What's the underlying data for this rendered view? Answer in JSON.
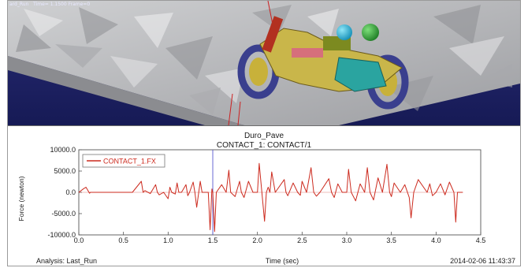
{
  "viewport": {
    "title_bar": "ard_Run   Time= 1.1500 Frame=0",
    "colors": {
      "sky": "#1d2168",
      "road": "#b9babc",
      "road_dark": "#7e8084",
      "tire": "#3a3f8e",
      "frame": "#c6b13a",
      "ball_blue": "#2fb7d8",
      "ball_green": "#2fa83a",
      "engine": "#2aa4a0",
      "marker": "#cc2020"
    }
  },
  "chart_data": {
    "type": "line",
    "title": "Duro_Pave",
    "subtitle": "CONTACT_1: CONTACT/1",
    "xlabel": "Time (sec)",
    "ylabel": "Force (newton)",
    "xlim": [
      0.0,
      4.5
    ],
    "ylim": [
      -10000.0,
      10000.0
    ],
    "xticks": [
      "0.0",
      "0.5",
      "1.0",
      "1.5",
      "2.0",
      "2.5",
      "3.0",
      "3.5",
      "4.0",
      "4.5"
    ],
    "yticks": [
      "10000.0",
      "5000.0",
      "0.0",
      "-5000.0",
      "-10000.0"
    ],
    "xtick_values": [
      0,
      0.5,
      1.0,
      1.5,
      2.0,
      2.5,
      3.0,
      3.5,
      4.0,
      4.5
    ],
    "ytick_values": [
      10000,
      5000,
      0,
      -5000,
      -10000
    ],
    "grid": false,
    "legend_position": "top-left",
    "cursor_x": 1.5,
    "series": [
      {
        "name": "CONTACT_1.FX",
        "color": "#cc2a1e",
        "x": [
          0,
          0.05,
          0.08,
          0.12,
          0.13,
          0.6,
          0.7,
          0.72,
          0.74,
          0.8,
          0.86,
          0.88,
          0.9,
          0.95,
          1.0,
          1.02,
          1.04,
          1.08,
          1.1,
          1.12,
          1.15,
          1.2,
          1.22,
          1.24,
          1.28,
          1.3,
          1.32,
          1.36,
          1.38,
          1.45,
          1.47,
          1.49,
          1.5,
          1.52,
          1.54,
          1.6,
          1.65,
          1.68,
          1.7,
          1.75,
          1.8,
          1.82,
          1.85,
          1.9,
          1.95,
          2.0,
          2.02,
          2.05,
          2.08,
          2.1,
          2.12,
          2.14,
          2.16,
          2.2,
          2.3,
          2.32,
          2.34,
          2.4,
          2.45,
          2.48,
          2.5,
          2.55,
          2.6,
          2.63,
          2.66,
          2.7,
          2.8,
          2.83,
          2.86,
          2.9,
          2.95,
          3.0,
          3.02,
          3.05,
          3.1,
          3.15,
          3.2,
          3.23,
          3.26,
          3.3,
          3.35,
          3.4,
          3.45,
          3.48,
          3.5,
          3.53,
          3.6,
          3.65,
          3.7,
          3.72,
          3.75,
          3.8,
          3.9,
          3.93,
          3.96,
          4.0,
          4.05,
          4.1,
          4.15,
          4.2,
          4.22,
          4.24,
          4.27,
          4.3
        ],
        "y": [
          0,
          800,
          1200,
          -200,
          0,
          0,
          2600,
          0,
          400,
          -300,
          1800,
          0,
          -600,
          0,
          -1500,
          1200,
          0,
          -400,
          2200,
          0,
          0,
          1800,
          -800,
          0,
          2400,
          0,
          -3500,
          2600,
          0,
          0,
          -8800,
          800,
          0,
          -9200,
          0,
          1800,
          0,
          5200,
          0,
          -1000,
          2600,
          0,
          -1200,
          2600,
          0,
          0,
          6800,
          0,
          -6800,
          0,
          1200,
          0,
          4800,
          0,
          3000,
          0,
          -800,
          2200,
          0,
          -700,
          2600,
          0,
          5800,
          0,
          -900,
          0,
          3200,
          0,
          -1200,
          2000,
          0,
          0,
          5400,
          0,
          -2000,
          2000,
          0,
          5800,
          0,
          -1800,
          3400,
          0,
          6600,
          0,
          -1000,
          2200,
          0,
          1800,
          -1200,
          -6000,
          0,
          3000,
          0,
          2000,
          -800,
          0,
          2000,
          -600,
          2400,
          0,
          -7000,
          0,
          0,
          0
        ]
      }
    ]
  },
  "plot_footer": {
    "analysis": "Analysis:  Last_Run",
    "xlabel": "Time (sec)",
    "timestamp": "2014-02-06 11:43:37"
  }
}
